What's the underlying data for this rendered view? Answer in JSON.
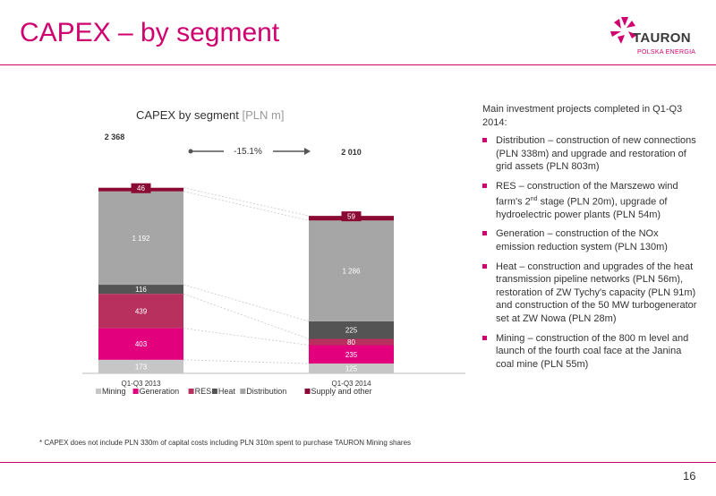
{
  "header": {
    "title": "CAPEX – by segment",
    "logo": {
      "word": "TAURON",
      "sub": "POLSKA ENERGIA",
      "brand_color": "#d0006f"
    }
  },
  "chart_data": {
    "type": "bar",
    "stacked": true,
    "title": "CAPEX by segment",
    "unit": "[PLN m]",
    "categories": [
      "Q1-Q3 2013",
      "Q1-Q3 2014"
    ],
    "totals": [
      "2 368",
      "2 010"
    ],
    "change_label": "-15.1%",
    "series": [
      {
        "name": "Mining",
        "color": "#c6c6c6",
        "values": [
          173,
          125
        ],
        "labels": [
          "173",
          "125"
        ]
      },
      {
        "name": "Generation",
        "color": "#e3007d",
        "values": [
          403,
          235
        ],
        "labels": [
          "403",
          "235"
        ]
      },
      {
        "name": "RES",
        "color": "#b8305e",
        "values": [
          439,
          80
        ],
        "labels": [
          "439",
          "80"
        ]
      },
      {
        "name": "Heat",
        "color": "#545454",
        "values": [
          116,
          225
        ],
        "labels": [
          "116",
          "225"
        ]
      },
      {
        "name": "Distribution",
        "color": "#a6a6a6",
        "values": [
          1192,
          1286
        ],
        "labels": [
          "1 192",
          "1 286"
        ]
      },
      {
        "name": "Supply and other",
        "color": "#8b0a34",
        "values": [
          46,
          59
        ],
        "labels": [
          "46",
          "59"
        ]
      }
    ]
  },
  "notes": {
    "heading": "Main investment projects completed in Q1-Q3 2014:",
    "items": [
      {
        "pre": "Distribution – construction of new connections (PLN 338m) and upgrade and restoration of grid assets (PLN 803m)"
      },
      {
        "pre": "RES – construction of the Marszewo wind farm's 2",
        "sup": "nd",
        "post": " stage (PLN 20m), upgrade of hydroelectric power plants (PLN 54m)"
      },
      {
        "pre": "Generation – construction of the NOx emission reduction system (PLN 130m)"
      },
      {
        "pre": "Heat – construction and upgrades of the heat transmission pipeline networks (PLN 56m), restoration of ZW Tychy's capacity (PLN 91m) and construction of the 50 MW turbogenerator set at ZW Nowa (PLN 28m)"
      },
      {
        "pre": "Mining – construction of the 800 m level and launch of the fourth coal face at the Janina coal mine (PLN 55m)"
      }
    ]
  },
  "footnote": "* CAPEX does not include PLN 330m of capital costs including PLN 310m spent to purchase TAURON Mining shares",
  "page_number": "16"
}
